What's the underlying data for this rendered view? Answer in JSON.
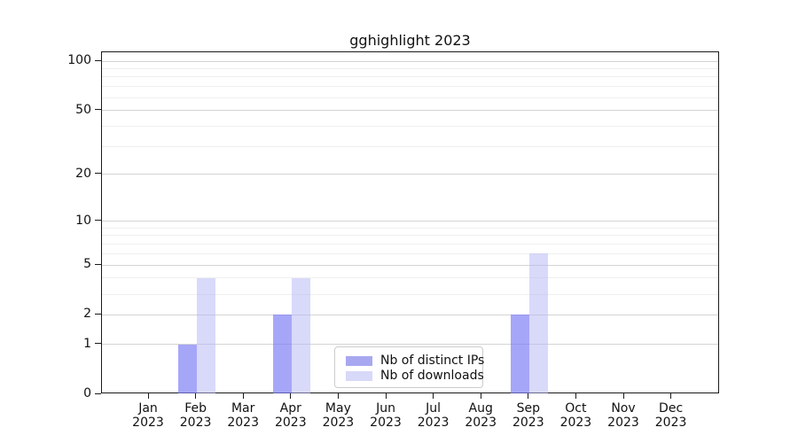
{
  "chart_data": {
    "type": "bar",
    "title": "gghighlight 2023",
    "x_axis": {
      "months": [
        "Jan",
        "Feb",
        "Mar",
        "Apr",
        "May",
        "Jun",
        "Jul",
        "Aug",
        "Sep",
        "Oct",
        "Nov",
        "Dec"
      ],
      "year": "2023"
    },
    "y_axis": {
      "scale": "log1p",
      "major_ticks": [
        0,
        1,
        2,
        5,
        10,
        20,
        50,
        100
      ],
      "minor_ticks": [
        3,
        4,
        6,
        7,
        8,
        9,
        30,
        40,
        60,
        70,
        80,
        90
      ],
      "ylim": [
        0,
        115
      ]
    },
    "series": [
      {
        "name": "Nb of distinct IPs",
        "legend_color": "#a8a8f0",
        "bar_fill": "rgba(124,124,245,0.68)",
        "values": [
          0,
          1,
          0,
          2,
          0,
          0,
          0,
          0,
          2,
          0,
          0,
          0
        ]
      },
      {
        "name": "Nb of downloads",
        "legend_color": "#d8d8f8",
        "bar_fill": "rgba(182,182,246,0.52)",
        "values": [
          0,
          4,
          0,
          4,
          0,
          0,
          0,
          0,
          6,
          0,
          0,
          0
        ]
      }
    ],
    "legend": {
      "position": "lower center inside",
      "items": [
        "Nb of distinct IPs",
        "Nb of downloads"
      ]
    },
    "grid": "horizontal",
    "colors": {
      "grid_major": "#d4d4d4",
      "grid_minor": "#efefef",
      "spine": "#1a1a1a",
      "text": "#111111",
      "legend_border": "#cccccc",
      "background": "#ffffff"
    }
  }
}
